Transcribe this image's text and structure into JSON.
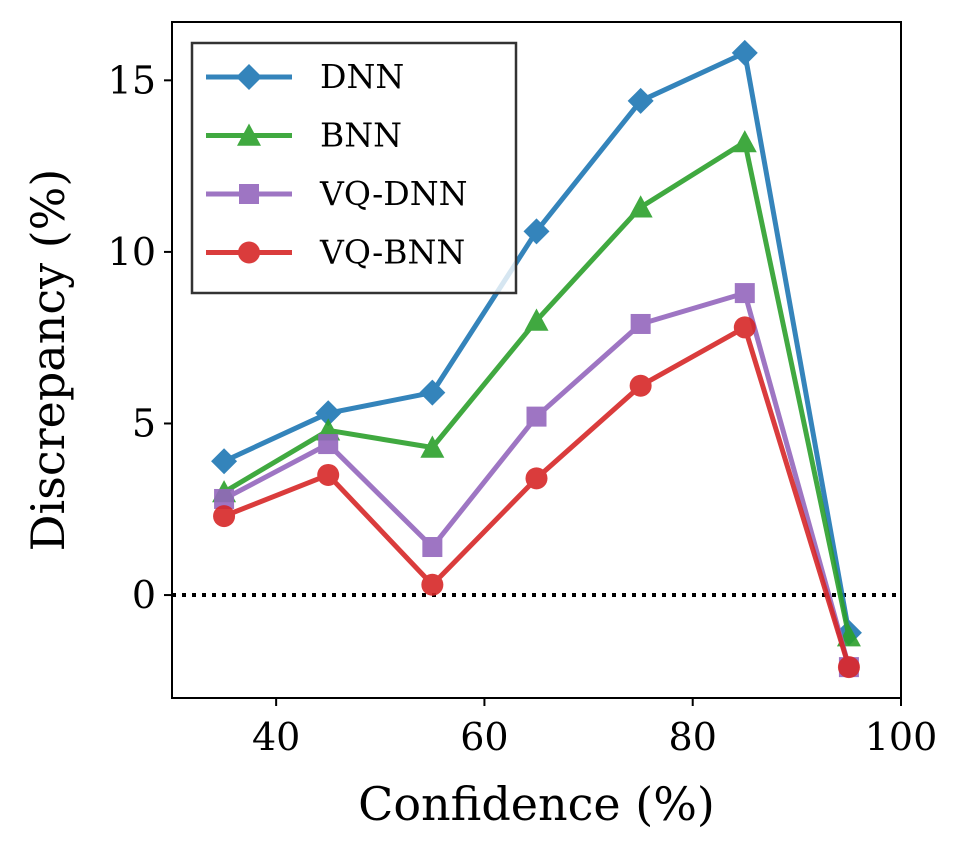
{
  "chart_data": {
    "type": "line",
    "title": "",
    "xlabel": "Confidence (%)",
    "ylabel": "Discrepancy (%)",
    "xlim": [
      30,
      100
    ],
    "ylim": [
      -3,
      16.7
    ],
    "xticks": [
      40,
      60,
      80,
      100
    ],
    "yticks": [
      0,
      5,
      10,
      15
    ],
    "grid": false,
    "legend_position": "top-left",
    "reference_line": {
      "y": 0,
      "style": "dotted",
      "color": "#000000"
    },
    "x": [
      35,
      45,
      55,
      65,
      75,
      85,
      95
    ],
    "series": [
      {
        "name": "DNN",
        "marker": "diamond",
        "color": "#1f77b4",
        "values": [
          3.9,
          5.3,
          5.9,
          10.6,
          14.4,
          15.8,
          -1.1
        ]
      },
      {
        "name": "BNN",
        "marker": "triangle",
        "color": "#2ca02c",
        "values": [
          3.0,
          4.8,
          4.3,
          8.0,
          11.3,
          13.2,
          -1.2
        ]
      },
      {
        "name": "VQ-DNN",
        "marker": "square",
        "color": "#9467bd",
        "values": [
          2.8,
          4.4,
          1.4,
          5.2,
          7.9,
          8.8,
          -2.1
        ]
      },
      {
        "name": "VQ-BNN",
        "marker": "circle",
        "color": "#d62728",
        "values": [
          2.3,
          3.5,
          0.3,
          3.4,
          6.1,
          7.8,
          -2.1
        ]
      }
    ]
  }
}
